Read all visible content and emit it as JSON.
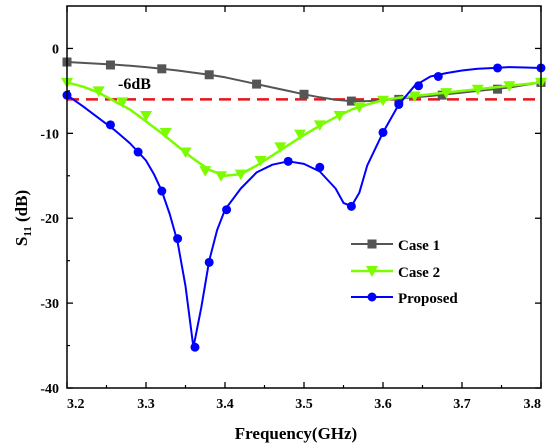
{
  "chart_data": {
    "type": "line",
    "title": "",
    "xlabel": "Frequency(GHz)",
    "ylabel_main": "S",
    "ylabel_sub": "11",
    "ylabel_unit": " (dB)",
    "xlim": [
      3.2,
      3.8
    ],
    "ylim": [
      -40,
      5
    ],
    "x_ticks": [
      "3.2",
      "3.3",
      "3.4",
      "3.5",
      "3.6",
      "3.7",
      "3.8"
    ],
    "x_tick_values": [
      3.2,
      3.3,
      3.4,
      3.5,
      3.6,
      3.7,
      3.8
    ],
    "y_ticks": [
      "0",
      "-10",
      "-20",
      "-30",
      "-40"
    ],
    "y_tick_values": [
      0,
      -10,
      -20,
      -30,
      -40
    ],
    "grid": false,
    "legend_position": "lower-right",
    "annotation": {
      "text": "-6dB",
      "x": 3.27,
      "y": -4.3
    },
    "reference_line": {
      "y": -6,
      "color": "#e8141c",
      "style": "dashed"
    },
    "series": [
      {
        "name": "Case 1",
        "color": "#555555",
        "marker": "square",
        "x": [
          3.2,
          3.22,
          3.24,
          3.26,
          3.28,
          3.3,
          3.32,
          3.34,
          3.36,
          3.38,
          3.4,
          3.42,
          3.44,
          3.46,
          3.48,
          3.5,
          3.52,
          3.54,
          3.56,
          3.58,
          3.6,
          3.62,
          3.64,
          3.66,
          3.68,
          3.7,
          3.72,
          3.74,
          3.76,
          3.78,
          3.8
        ],
        "y": [
          -1.6,
          -1.7,
          -1.8,
          -1.9,
          -2.05,
          -2.2,
          -2.4,
          -2.6,
          -2.85,
          -3.1,
          -3.4,
          -3.8,
          -4.2,
          -4.6,
          -5.0,
          -5.4,
          -5.75,
          -6.05,
          -6.2,
          -6.2,
          -6.1,
          -5.9,
          -5.75,
          -5.6,
          -5.4,
          -5.2,
          -5.0,
          -4.8,
          -4.6,
          -4.3,
          -4.0
        ],
        "marker_x": [
          3.2,
          3.255,
          3.32,
          3.38,
          3.44,
          3.5,
          3.56,
          3.62,
          3.675,
          3.745,
          3.8
        ],
        "marker_y": [
          -1.6,
          -1.95,
          -2.4,
          -3.1,
          -4.2,
          -5.4,
          -6.2,
          -6.0,
          -5.5,
          -4.8,
          -4.0
        ]
      },
      {
        "name": "Case 2",
        "color": "#7cfc00",
        "marker": "triangle-down",
        "x": [
          3.2,
          3.22,
          3.24,
          3.26,
          3.28,
          3.3,
          3.32,
          3.34,
          3.36,
          3.38,
          3.4,
          3.42,
          3.44,
          3.46,
          3.48,
          3.5,
          3.52,
          3.54,
          3.56,
          3.58,
          3.6,
          3.62,
          3.64,
          3.66,
          3.68,
          3.7,
          3.72,
          3.74,
          3.76,
          3.78,
          3.8
        ],
        "y": [
          -4.0,
          -4.5,
          -5.2,
          -6.2,
          -7.2,
          -8.6,
          -10.0,
          -11.5,
          -13.0,
          -14.3,
          -15.0,
          -14.8,
          -13.8,
          -12.6,
          -11.4,
          -10.2,
          -9.1,
          -8.1,
          -7.2,
          -6.6,
          -6.1,
          -5.8,
          -5.6,
          -5.4,
          -5.2,
          -5.0,
          -4.8,
          -4.6,
          -4.4,
          -4.2,
          -4.0
        ],
        "marker_x": [
          3.2,
          3.24,
          3.27,
          3.3,
          3.325,
          3.35,
          3.375,
          3.395,
          3.42,
          3.445,
          3.47,
          3.495,
          3.52,
          3.545,
          3.57,
          3.6,
          3.64,
          3.68,
          3.72,
          3.76,
          3.8
        ],
        "marker_y": [
          -4.0,
          -5.0,
          -6.3,
          -7.9,
          -9.9,
          -12.2,
          -14.4,
          -15.0,
          -14.8,
          -13.2,
          -11.6,
          -10.1,
          -9.0,
          -7.9,
          -6.9,
          -6.1,
          -5.6,
          -5.2,
          -4.8,
          -4.4,
          -4.0
        ]
      },
      {
        "name": "Proposed",
        "color": "#0000ff",
        "marker": "circle",
        "x": [
          3.2,
          3.22,
          3.24,
          3.26,
          3.28,
          3.3,
          3.31,
          3.32,
          3.33,
          3.34,
          3.35,
          3.36,
          3.37,
          3.38,
          3.39,
          3.4,
          3.42,
          3.44,
          3.46,
          3.48,
          3.5,
          3.52,
          3.54,
          3.55,
          3.56,
          3.57,
          3.58,
          3.6,
          3.62,
          3.64,
          3.66,
          3.68,
          3.7,
          3.72,
          3.74,
          3.76,
          3.78,
          3.8
        ],
        "y": [
          -5.5,
          -6.8,
          -8.2,
          -9.6,
          -11.2,
          -13.2,
          -14.8,
          -16.8,
          -19.5,
          -22.8,
          -28.0,
          -35.2,
          -30.5,
          -25.0,
          -21.4,
          -19.0,
          -16.5,
          -14.6,
          -13.7,
          -13.3,
          -13.6,
          -14.5,
          -16.5,
          -18.2,
          -18.6,
          -17.0,
          -13.8,
          -9.9,
          -6.6,
          -4.4,
          -3.3,
          -2.9,
          -2.6,
          -2.4,
          -2.3,
          -2.2,
          -2.25,
          -2.3
        ],
        "marker_x": [
          3.2,
          3.255,
          3.29,
          3.32,
          3.34,
          3.362,
          3.38,
          3.402,
          3.48,
          3.52,
          3.56,
          3.6,
          3.62,
          3.645,
          3.67,
          3.745,
          3.8
        ],
        "marker_y": [
          -5.5,
          -9.0,
          -12.2,
          -16.8,
          -22.4,
          -35.2,
          -25.2,
          -19.0,
          -13.3,
          -14.0,
          -18.6,
          -9.9,
          -6.6,
          -4.4,
          -3.3,
          -2.3,
          -2.3
        ]
      }
    ]
  }
}
